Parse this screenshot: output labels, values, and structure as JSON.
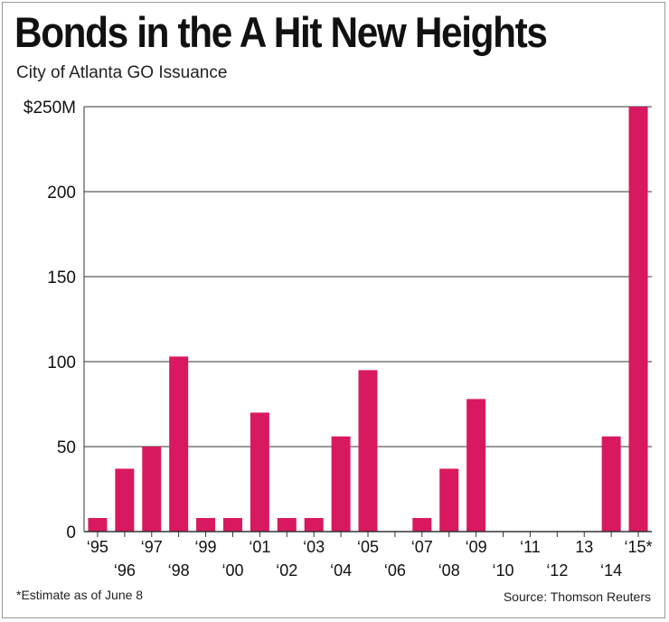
{
  "header": {
    "title": "Bonds in the A Hit New Heights",
    "subtitle": "City of Atlanta GO Issuance"
  },
  "footer": {
    "footnote": "*Estimate as of June 8",
    "source": "Source: Thomson Reuters"
  },
  "colors": {
    "bar": "#d9195f",
    "grid": "#333333",
    "text": "#111111"
  },
  "chart_data": {
    "type": "bar",
    "title": "Bonds in the A Hit New Heights",
    "subtitle": "City of Atlanta GO Issuance",
    "xlabel": "",
    "ylabel": "",
    "categories": [
      "‘95",
      "‘96",
      "‘97",
      "‘98",
      "‘99",
      "‘00",
      "‘01",
      "‘02",
      "‘03",
      "‘04",
      "‘05",
      "‘06",
      "‘07",
      "‘08",
      "‘09",
      "‘10",
      "‘11",
      "‘12",
      "13",
      "‘14",
      "‘15*"
    ],
    "values": [
      8,
      37,
      50,
      103,
      8,
      8,
      70,
      8,
      8,
      56,
      95,
      0,
      8,
      37,
      78,
      0,
      0,
      0,
      0,
      56,
      250
    ],
    "ylim": [
      0,
      250
    ],
    "yticks": [
      0,
      50,
      100,
      150,
      200,
      250
    ],
    "ytick_labels": [
      "0",
      "50",
      "100",
      "150",
      "200",
      "$250M"
    ],
    "grid": true,
    "legend": "none"
  }
}
